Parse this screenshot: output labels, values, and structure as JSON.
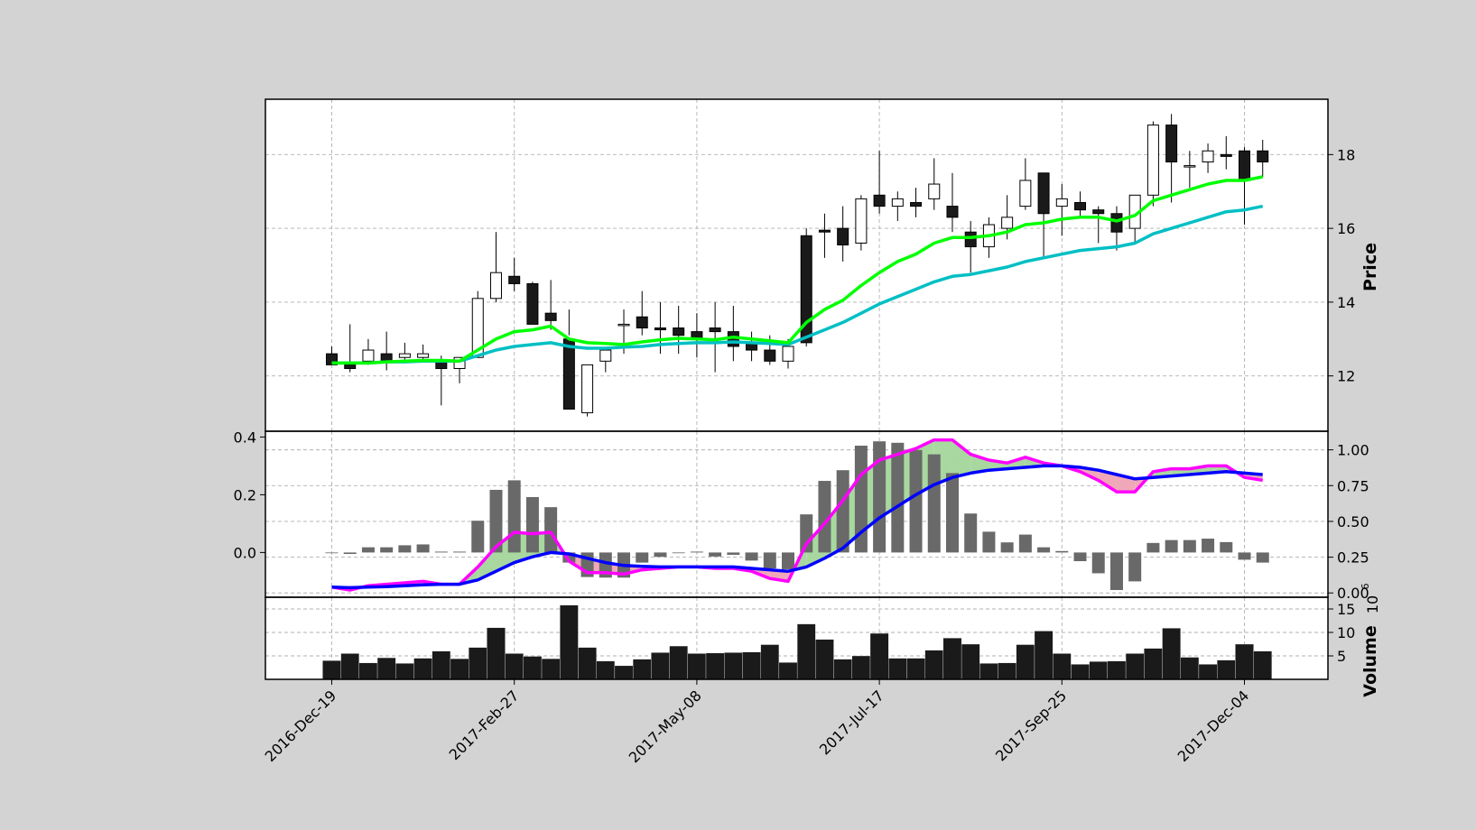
{
  "chart_data": {
    "type": "candlestick",
    "x": [
      "2016-Dec-19",
      "2016-Dec-26",
      "2017-Jan-02",
      "2017-Jan-09",
      "2017-Jan-16",
      "2017-Jan-23",
      "2017-Jan-30",
      "2017-Feb-06",
      "2017-Feb-13",
      "2017-Feb-20",
      "2017-Feb-27",
      "2017-Mar-06",
      "2017-Mar-13",
      "2017-Mar-20",
      "2017-Mar-27",
      "2017-Apr-03",
      "2017-Apr-10",
      "2017-Apr-17",
      "2017-Apr-24",
      "2017-May-01",
      "2017-May-08",
      "2017-May-15",
      "2017-May-22",
      "2017-May-29",
      "2017-Jun-05",
      "2017-Jun-12",
      "2017-Jun-19",
      "2017-Jun-26",
      "2017-Jul-03",
      "2017-Jul-10",
      "2017-Jul-17",
      "2017-Jul-24",
      "2017-Jul-31",
      "2017-Aug-07",
      "2017-Aug-14",
      "2017-Aug-21",
      "2017-Aug-28",
      "2017-Sep-04",
      "2017-Sep-11",
      "2017-Sep-18",
      "2017-Sep-25",
      "2017-Oct-02",
      "2017-Oct-09",
      "2017-Oct-16",
      "2017-Oct-23",
      "2017-Oct-30",
      "2017-Nov-06",
      "2017-Nov-13",
      "2017-Nov-20",
      "2017-Nov-27",
      "2017-Dec-04",
      "2017-Dec-11"
    ],
    "x_tick_labels": [
      "2016-Dec-19",
      "2017-Feb-27",
      "2017-May-08",
      "2017-Jul-17",
      "2017-Sep-25",
      "2017-Dec-04"
    ],
    "x_tick_indices": [
      0,
      10,
      20,
      30,
      40,
      50
    ],
    "candles": {
      "open": [
        12.6,
        12.3,
        12.4,
        12.6,
        12.5,
        12.5,
        12.4,
        12.2,
        12.5,
        14.1,
        14.7,
        14.5,
        13.7,
        13.0,
        11.0,
        12.4,
        13.4,
        13.6,
        13.3,
        13.3,
        13.2,
        13.3,
        13.2,
        12.9,
        12.7,
        12.4,
        15.8,
        15.95,
        16.0,
        15.6,
        16.9,
        16.6,
        16.7,
        16.8,
        16.6,
        15.9,
        15.5,
        16.0,
        16.6,
        17.5,
        16.6,
        16.7,
        16.5,
        16.4,
        16.0,
        16.9,
        18.8,
        17.7,
        17.8,
        18.0,
        18.1,
        18.1
      ],
      "high": [
        12.8,
        13.4,
        13.0,
        13.2,
        12.9,
        12.85,
        12.55,
        12.5,
        14.3,
        15.9,
        15.2,
        14.55,
        14.6,
        13.8,
        12.3,
        12.7,
        13.8,
        14.3,
        14.0,
        13.9,
        13.7,
        14.0,
        13.9,
        13.2,
        13.1,
        13.0,
        16.0,
        16.4,
        16.6,
        16.9,
        18.1,
        17.0,
        17.1,
        17.9,
        17.5,
        16.2,
        16.3,
        16.9,
        17.9,
        17.5,
        17.2,
        17.0,
        16.6,
        16.6,
        16.9,
        18.9,
        19.1,
        18.1,
        18.3,
        18.5,
        18.2,
        18.4
      ],
      "low": [
        12.3,
        12.1,
        12.3,
        12.15,
        12.35,
        12.4,
        11.2,
        11.8,
        12.5,
        14.0,
        14.3,
        14.0,
        13.25,
        13.1,
        10.9,
        12.1,
        12.6,
        13.1,
        12.6,
        12.6,
        12.5,
        12.1,
        12.4,
        12.4,
        12.3,
        12.2,
        12.8,
        15.2,
        15.1,
        15.4,
        16.4,
        16.2,
        16.3,
        16.5,
        15.9,
        14.8,
        15.2,
        15.7,
        16.5,
        15.2,
        15.8,
        16.3,
        15.6,
        15.4,
        15.6,
        16.6,
        16.7,
        17.1,
        17.5,
        17.6,
        16.1,
        17.4
      ],
      "close": [
        12.3,
        12.2,
        12.7,
        12.4,
        12.6,
        12.6,
        12.2,
        12.5,
        14.1,
        14.8,
        14.5,
        13.4,
        13.5,
        11.1,
        12.3,
        12.7,
        13.4,
        13.3,
        13.25,
        13.1,
        13.0,
        13.2,
        12.8,
        12.7,
        12.4,
        12.8,
        12.9,
        15.9,
        15.55,
        16.8,
        16.6,
        16.8,
        16.6,
        17.2,
        16.3,
        15.5,
        16.1,
        16.3,
        17.3,
        16.4,
        16.8,
        16.5,
        16.4,
        15.9,
        16.9,
        18.8,
        17.8,
        17.7,
        18.1,
        17.95,
        17.3,
        17.8
      ]
    },
    "ma_fast": [
      12.35,
      12.35,
      12.35,
      12.38,
      12.4,
      12.42,
      12.42,
      12.4,
      12.7,
      13.0,
      13.2,
      13.25,
      13.35,
      13.0,
      12.9,
      12.88,
      12.85,
      12.92,
      12.98,
      13.02,
      13.0,
      12.98,
      13.05,
      13.0,
      12.95,
      12.9,
      13.45,
      13.8,
      14.05,
      14.45,
      14.8,
      15.1,
      15.3,
      15.6,
      15.75,
      15.75,
      15.8,
      15.9,
      16.1,
      16.15,
      16.25,
      16.3,
      16.3,
      16.2,
      16.35,
      16.75,
      16.9,
      17.05,
      17.2,
      17.3,
      17.3,
      17.4
    ],
    "ma_slow": [
      12.35,
      12.35,
      12.35,
      12.38,
      12.38,
      12.4,
      12.4,
      12.4,
      12.55,
      12.7,
      12.8,
      12.85,
      12.9,
      12.8,
      12.75,
      12.75,
      12.78,
      12.8,
      12.85,
      12.88,
      12.9,
      12.9,
      12.92,
      12.9,
      12.88,
      12.85,
      13.05,
      13.25,
      13.45,
      13.7,
      13.95,
      14.15,
      14.35,
      14.55,
      14.7,
      14.75,
      14.85,
      14.95,
      15.1,
      15.2,
      15.3,
      15.4,
      15.45,
      15.5,
      15.6,
      15.85,
      16.0,
      16.15,
      16.3,
      16.45,
      16.5,
      16.6
    ],
    "macd_line": [
      -0.12,
      -0.13,
      -0.115,
      -0.11,
      -0.105,
      -0.1,
      -0.11,
      -0.11,
      -0.05,
      0.02,
      0.07,
      0.065,
      0.07,
      -0.03,
      -0.07,
      -0.07,
      -0.075,
      -0.06,
      -0.055,
      -0.05,
      -0.05,
      -0.055,
      -0.055,
      -0.065,
      -0.09,
      -0.1,
      0.03,
      0.1,
      0.18,
      0.27,
      0.32,
      0.34,
      0.36,
      0.39,
      0.39,
      0.34,
      0.32,
      0.31,
      0.33,
      0.31,
      0.3,
      0.28,
      0.25,
      0.21,
      0.21,
      0.28,
      0.29,
      0.29,
      0.3,
      0.3,
      0.26,
      0.25
    ],
    "signal_line": [
      -0.12,
      -0.122,
      -0.12,
      -0.118,
      -0.115,
      -0.112,
      -0.11,
      -0.11,
      -0.095,
      -0.065,
      -0.035,
      -0.015,
      0.0,
      -0.005,
      -0.02,
      -0.035,
      -0.045,
      -0.048,
      -0.05,
      -0.05,
      -0.05,
      -0.05,
      -0.05,
      -0.055,
      -0.06,
      -0.065,
      -0.05,
      -0.02,
      0.015,
      0.07,
      0.12,
      0.16,
      0.2,
      0.235,
      0.26,
      0.275,
      0.285,
      0.29,
      0.295,
      0.3,
      0.3,
      0.295,
      0.285,
      0.27,
      0.255,
      0.26,
      0.265,
      0.27,
      0.275,
      0.28,
      0.275,
      0.27
    ],
    "macd_histogram": [
      0,
      -0.005,
      0.018,
      0.018,
      0.025,
      0.028,
      0.003,
      0.003,
      0.11,
      0.217,
      0.25,
      0.192,
      0.157,
      -0.035,
      -0.085,
      -0.087,
      -0.087,
      -0.035,
      -0.015,
      0,
      0.003,
      -0.014,
      -0.008,
      -0.028,
      -0.055,
      -0.058,
      0.132,
      0.248,
      0.285,
      0.37,
      0.385,
      0.38,
      0.355,
      0.34,
      0.275,
      0.135,
      0.072,
      0.035,
      0.062,
      0.018,
      0.005,
      -0.03,
      -0.072,
      -0.13,
      -0.1,
      0.033,
      0.043,
      0.043,
      0.048,
      0.036,
      -0.025,
      -0.035
    ],
    "volume": [
      4,
      5.5,
      3.5,
      4.6,
      3.4,
      4.5,
      6,
      4.4,
      6.8,
      11,
      5.5,
      4.9,
      4.4,
      15.8,
      6.8,
      3.9,
      2.9,
      4.3,
      5.7,
      7.1,
      5.5,
      5.6,
      5.7,
      5.8,
      7.4,
      3.6,
      11.8,
      8.5,
      4.3,
      5,
      9.8,
      4.5,
      4.5,
      6.2,
      8.8,
      7.5,
      3.4,
      3.5,
      7.4,
      10.3,
      5.5,
      3.2,
      3.8,
      3.9,
      5.5,
      6.6,
      10.9,
      4.7,
      3.2,
      4.1,
      7.5,
      6
    ]
  },
  "labels": {
    "price_ylabel": "Price",
    "volume_ylabel": "Volume",
    "volume_exponent": "10",
    "volume_exponent_power": "6"
  },
  "axes": {
    "price_ylim": [
      10.5,
      19.5
    ],
    "price_ticks": [
      "12",
      "14",
      "16",
      "18"
    ],
    "macd_left_ylim": [
      -0.155,
      0.42
    ],
    "macd_left_ticks": [
      "0.0",
      "0.2",
      "0.4"
    ],
    "macd_right_ylim": [
      -0.03,
      1.13
    ],
    "macd_right_ticks": [
      "0.00",
      "0.25",
      "0.50",
      "0.75",
      "1.00"
    ],
    "volume_ylim": [
      0,
      17.5
    ],
    "volume_ticks": [
      "5",
      "10",
      "15"
    ]
  },
  "colors": {
    "background": "#d3d3d3",
    "panel": "#ffffff",
    "ma_fast": "#00ff00",
    "ma_slow": "#00bfc4",
    "macd": "#ff00ff",
    "signal": "#0000ff",
    "histogram": "#696969",
    "fill_up": "#a8d8a0",
    "fill_down": "#f0a8b8",
    "volume": "#1a1a1a",
    "candle_down": "#1a1a1a",
    "candle_up": "#ffffff"
  }
}
